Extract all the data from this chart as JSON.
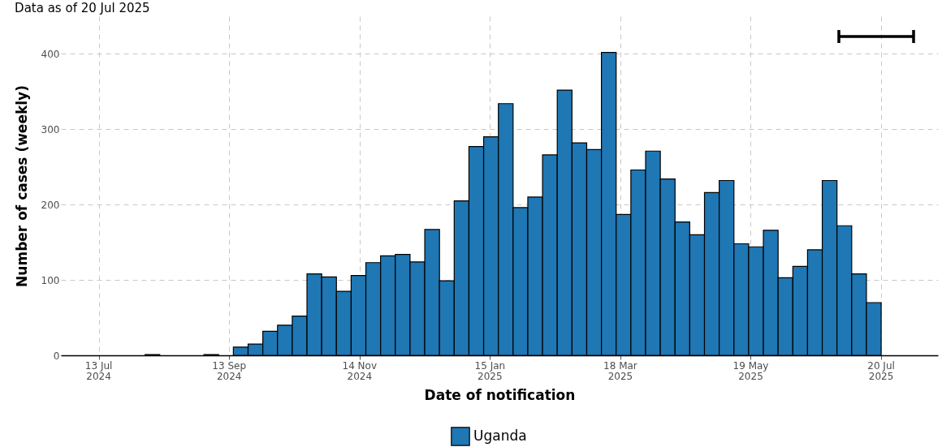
{
  "chart_data": {
    "type": "histogram",
    "subtitle": "Data as of 20 Jul 2025",
    "xlabel": "Date of notification",
    "ylabel": "Number of cases (weekly)",
    "bins": [
      "2024-08-04",
      "2024-08-11",
      "2024-08-18",
      "2024-08-25",
      "2024-09-01",
      "2024-09-08",
      "2024-09-15",
      "2024-09-22",
      "2024-09-29",
      "2024-10-06",
      "2024-10-13",
      "2024-10-20",
      "2024-10-27",
      "2024-11-03",
      "2024-11-10",
      "2024-11-17",
      "2024-11-24",
      "2024-12-01",
      "2024-12-08",
      "2024-12-15",
      "2024-12-22",
      "2024-12-29",
      "2025-01-05",
      "2025-01-12",
      "2025-01-19",
      "2025-01-26",
      "2025-02-02",
      "2025-02-09",
      "2025-02-16",
      "2025-02-23",
      "2025-03-02",
      "2025-03-09",
      "2025-03-16",
      "2025-03-23",
      "2025-03-30",
      "2025-04-06",
      "2025-04-13",
      "2025-04-20",
      "2025-04-27",
      "2025-05-04",
      "2025-05-11",
      "2025-05-18",
      "2025-05-25",
      "2025-06-01",
      "2025-06-08",
      "2025-06-15",
      "2025-06-22",
      "2025-06-29",
      "2025-07-06",
      "2025-07-13",
      "2025-07-20"
    ],
    "series": [
      {
        "name": "Uganda",
        "color": "#1f77b4",
        "values": [
          1,
          0,
          0,
          0,
          1,
          0,
          11,
          15,
          32,
          40,
          52,
          108,
          104,
          85,
          106,
          123,
          132,
          134,
          124,
          167,
          99,
          205,
          277,
          290,
          334,
          196,
          210,
          266,
          352,
          282,
          273,
          402,
          187,
          246,
          271,
          234,
          177,
          160,
          216,
          232,
          148,
          144,
          166,
          103,
          118,
          140,
          232,
          172,
          108,
          70
        ]
      }
    ],
    "xlim": [
      "2024-06-25",
      "2025-08-16"
    ],
    "xticks": [
      {
        "value": "2024-07-13",
        "label": "13 Jul\n2024"
      },
      {
        "value": "2024-09-13",
        "label": "13 Sep\n2024"
      },
      {
        "value": "2024-11-14",
        "label": "14 Nov\n2024"
      },
      {
        "value": "2025-01-15",
        "label": "15 Jan\n2025"
      },
      {
        "value": "2025-03-18",
        "label": "18 Mar\n2025"
      },
      {
        "value": "2025-05-19",
        "label": "19 May\n2025"
      },
      {
        "value": "2025-07-20",
        "label": "20 Jul\n2025"
      }
    ],
    "ylim": [
      0,
      450
    ],
    "yticks": [
      0,
      100,
      200,
      300,
      400
    ],
    "grid": true,
    "legend": "bottom"
  }
}
